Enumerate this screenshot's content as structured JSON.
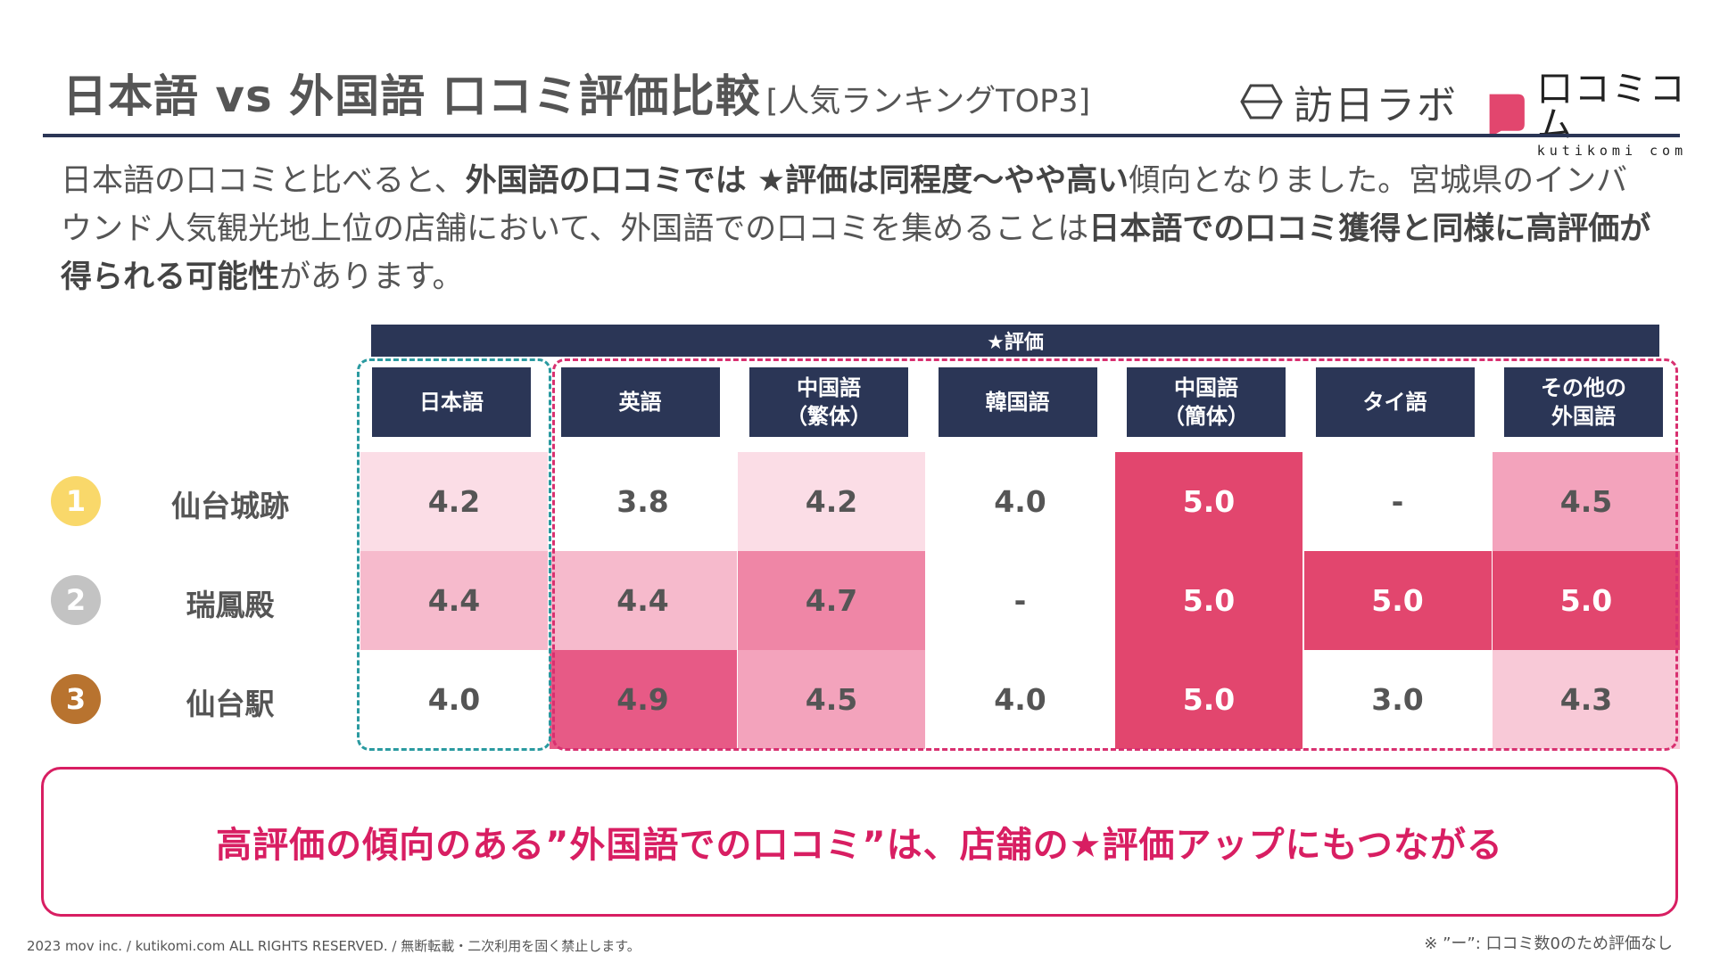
{
  "header": {
    "title": "日本語 vs 外国語 口コミ評価比較",
    "subtitle": "[人気ランキングTOP3]",
    "logo_houjin": "訪日ラボ",
    "logo_kutikomi_jp": "口コミコム",
    "logo_kutikomi_en": "kutikomi com"
  },
  "intro": {
    "p1": "日本語の口コミと比べると、",
    "b1": "外国語の口コミでは ★評価は同程度〜やや高い",
    "p2": "傾向となりました。宮城県のインバウンド人気観光地上位の店舗において、外国語での口コミを集めることは",
    "b2": "日本語での口コミ獲得と同様に高評価が得られる可能性",
    "p3": "があります。"
  },
  "table": {
    "group_header": "★評価",
    "columns": [
      "日本語",
      "英語",
      "中国語\n（繁体）",
      "韓国語",
      "中国語\n（簡体）",
      "タイ語",
      "その他の\n外国語"
    ],
    "rows": [
      {
        "rank": "1",
        "place": "仙台城跡",
        "values": [
          "4.2",
          "3.8",
          "4.2",
          "4.0",
          "5.0",
          "-",
          "4.5"
        ]
      },
      {
        "rank": "2",
        "place": "瑞鳳殿",
        "values": [
          "4.4",
          "4.4",
          "4.7",
          "-",
          "5.0",
          "5.0",
          "5.0"
        ]
      },
      {
        "rank": "3",
        "place": "仙台駅",
        "values": [
          "4.0",
          "4.9",
          "4.5",
          "4.0",
          "5.0",
          "3.0",
          "4.3"
        ]
      }
    ],
    "rank_colors": [
      "#f9d86a",
      "#c3c3c3",
      "#b8732f"
    ]
  },
  "conclusion": "高評価の傾向のある”外国語での口コミ”は、店舗の★評価アップにもつながる",
  "footer": {
    "copyright": "2023 mov inc. / kutikomi.com ALL RIGHTS RESERVED. / 無断転載・二次利用を固く禁止します。",
    "note": "※ ”ー”: 口コミ数0のため評価なし"
  },
  "colors": {
    "navy": "#2b3656",
    "pink_accent": "#d81e62",
    "teal_dash": "#2a9aa0"
  }
}
